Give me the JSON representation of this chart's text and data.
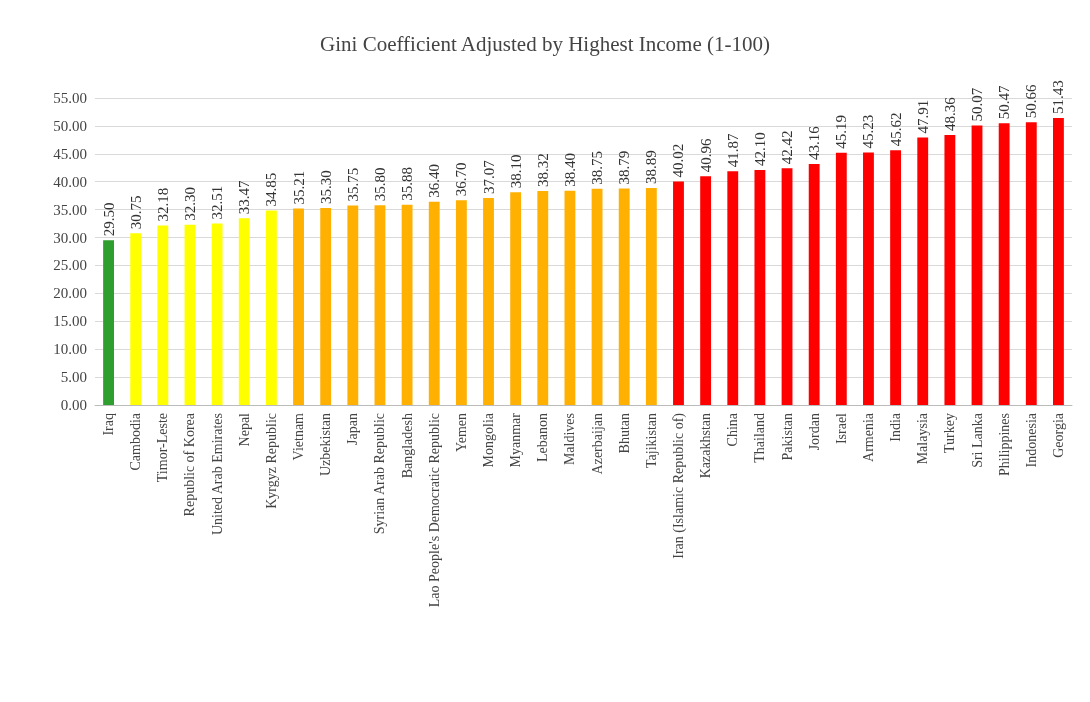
{
  "chart_data": {
    "type": "bar",
    "title": "Gini Coefficient Adjusted by Highest Income (1-100)",
    "categories": [
      "Iraq",
      "Cambodia",
      "Timor-Leste",
      "Republic of Korea",
      "United Arab Emirates",
      "Nepal",
      "Kyrgyz Republic",
      "Vietnam",
      "Uzbekistan",
      "Japan",
      "Syrian Arab Republic",
      "Bangladesh",
      "Lao People's Democratic Republic",
      "Yemen",
      "Mongolia",
      "Myanmar",
      "Lebanon",
      "Maldives",
      "Azerbaijan",
      "Bhutan",
      "Tajikistan",
      "Iran (Islamic Republic of)",
      "Kazakhstan",
      "China",
      "Thailand",
      "Pakistan",
      "Jordan",
      "Israel",
      "Armenia",
      "India",
      "Malaysia",
      "Turkey",
      "Sri Lanka",
      "Philippines",
      "Indonesia",
      "Georgia"
    ],
    "values": [
      29.5,
      30.75,
      32.18,
      32.3,
      32.51,
      33.47,
      34.85,
      35.21,
      35.3,
      35.75,
      35.8,
      35.88,
      36.4,
      36.7,
      37.07,
      38.1,
      38.32,
      38.4,
      38.75,
      38.79,
      38.89,
      40.02,
      40.96,
      41.87,
      42.1,
      42.42,
      43.16,
      45.19,
      45.23,
      45.62,
      47.91,
      48.36,
      50.07,
      50.47,
      50.66,
      51.43
    ],
    "value_labels": [
      "29.50",
      "30.75",
      "32.18",
      "32.30",
      "32.51",
      "33.47",
      "34.85",
      "35.21",
      "35.30",
      "35.75",
      "35.80",
      "35.88",
      "36.40",
      "36.70",
      "37.07",
      "38.10",
      "38.32",
      "38.40",
      "38.75",
      "38.79",
      "38.89",
      "40.02",
      "40.96",
      "41.87",
      "42.10",
      "42.42",
      "43.16",
      "45.19",
      "45.23",
      "45.62",
      "47.91",
      "48.36",
      "50.07",
      "50.47",
      "50.66",
      "51.43"
    ],
    "colors": [
      "#2e9e2e",
      "#ffff00",
      "#ffff00",
      "#ffff00",
      "#ffff00",
      "#ffff00",
      "#ffff00",
      "#ffb000",
      "#ffb000",
      "#ffb000",
      "#ffb000",
      "#ffb000",
      "#ffb000",
      "#ffb000",
      "#ffb000",
      "#ffb000",
      "#ffb000",
      "#ffb000",
      "#ffb000",
      "#ffb000",
      "#ffb000",
      "#ff0000",
      "#ff0000",
      "#ff0000",
      "#ff0000",
      "#ff0000",
      "#ff0000",
      "#ff0000",
      "#ff0000",
      "#ff0000",
      "#ff0000",
      "#ff0000",
      "#ff0000",
      "#ff0000",
      "#ff0000",
      "#ff0000"
    ],
    "ylim": [
      0,
      55
    ],
    "yticks": [
      {
        "value": 0,
        "label": "0.00"
      },
      {
        "value": 5,
        "label": "5.00"
      },
      {
        "value": 10,
        "label": "10.00"
      },
      {
        "value": 15,
        "label": "15.00"
      },
      {
        "value": 20,
        "label": "20.00"
      },
      {
        "value": 25,
        "label": "25.00"
      },
      {
        "value": 30,
        "label": "30.00"
      },
      {
        "value": 35,
        "label": "35.00"
      },
      {
        "value": 40,
        "label": "40.00"
      },
      {
        "value": 45,
        "label": "45.00"
      },
      {
        "value": 50,
        "label": "50.00"
      },
      {
        "value": 55,
        "label": "55.00"
      }
    ],
    "grid": "y"
  }
}
